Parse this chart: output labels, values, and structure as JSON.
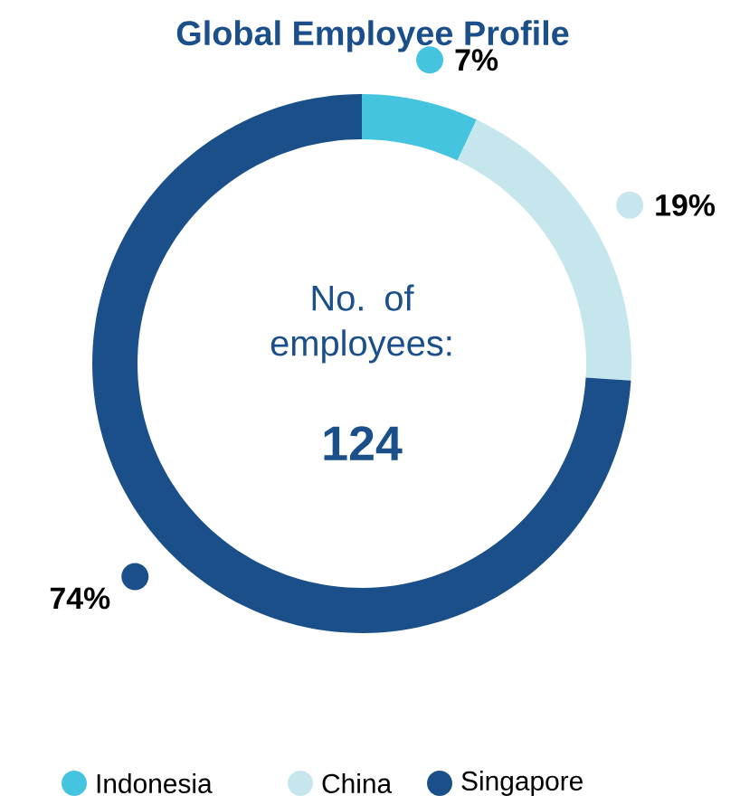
{
  "chart_data": {
    "type": "donut",
    "title": "Global Employee Profile",
    "categories": [
      "Indonesia",
      "China",
      "Singapore"
    ],
    "values": [
      7,
      19,
      74
    ],
    "colors": [
      "#45c4e0",
      "#c6e6ee",
      "#1b4f8a"
    ],
    "value_labels": [
      "7%",
      "19%",
      "74%"
    ],
    "annotations": [
      "No. of employees:",
      "124"
    ],
    "legend": "bottom"
  }
}
